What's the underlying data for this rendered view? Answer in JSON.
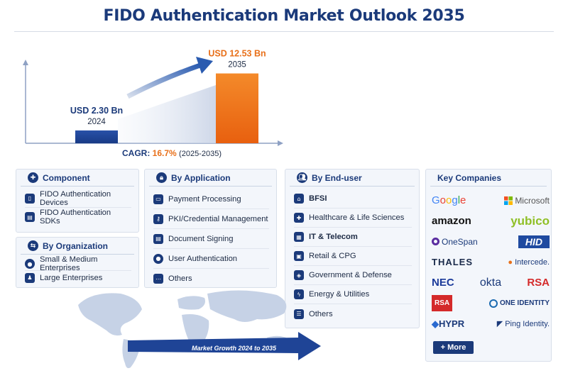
{
  "title": "FIDO Authentication Market Outlook 2035",
  "chart_data": {
    "type": "bar",
    "categories": [
      "2024",
      "2035"
    ],
    "values": [
      2.3,
      12.53
    ],
    "value_labels": [
      "USD 2.30 Bn",
      "USD 12.53 Bn"
    ],
    "colors": [
      "#1f4496",
      "#f07a1c"
    ],
    "ylim": [
      0,
      14
    ],
    "cagr_label": "CAGR:",
    "cagr_value": "16.7%",
    "cagr_period": "(2025-2035)"
  },
  "component": {
    "header": "Component",
    "items": [
      {
        "label": "FIDO Authentication Devices",
        "icon": "device-icon"
      },
      {
        "label": "FIDO Authentication SDKs",
        "icon": "sdk-icon"
      }
    ]
  },
  "organization": {
    "header": "By Organization",
    "items": [
      {
        "label": "Small & Medium Enterprises",
        "icon": "person-icon"
      },
      {
        "label": "Large Enterprises",
        "icon": "group-icon"
      }
    ]
  },
  "application": {
    "header": "By Application",
    "items": [
      {
        "label": "Payment Processing",
        "icon": "card-icon"
      },
      {
        "label": "PKI/Credential Management",
        "icon": "key-icon"
      },
      {
        "label": "Document Signing",
        "icon": "document-icon"
      },
      {
        "label": "User Authentication",
        "icon": "user-icon"
      },
      {
        "label": "Others",
        "icon": "dots-icon"
      }
    ]
  },
  "enduser": {
    "header": "By End-user",
    "items": [
      {
        "label": "BFSI",
        "icon": "bank-icon"
      },
      {
        "label": "Healthcare & Life Sciences",
        "icon": "health-icon"
      },
      {
        "label": "IT & Telecom",
        "icon": "network-icon"
      },
      {
        "label": "Retail & CPG",
        "icon": "cart-icon"
      },
      {
        "label": "Government & Defense",
        "icon": "shield-icon"
      },
      {
        "label": "Energy & Utilities",
        "icon": "energy-icon"
      },
      {
        "label": "Others",
        "icon": "list-icon"
      }
    ]
  },
  "companies": {
    "header": "Key Companies",
    "logos": [
      "Google",
      "Microsoft",
      "amazon",
      "yubico",
      "OneSpan",
      "HID",
      "THALES",
      "Intercede.",
      "NEC",
      "okta",
      "RSA",
      "RSA",
      "ONE IDENTITY",
      "HYPR",
      "Ping Identity."
    ],
    "more_label": "+ More"
  },
  "map": {
    "arrow_label": "Market Growth 2024 to 2035"
  }
}
